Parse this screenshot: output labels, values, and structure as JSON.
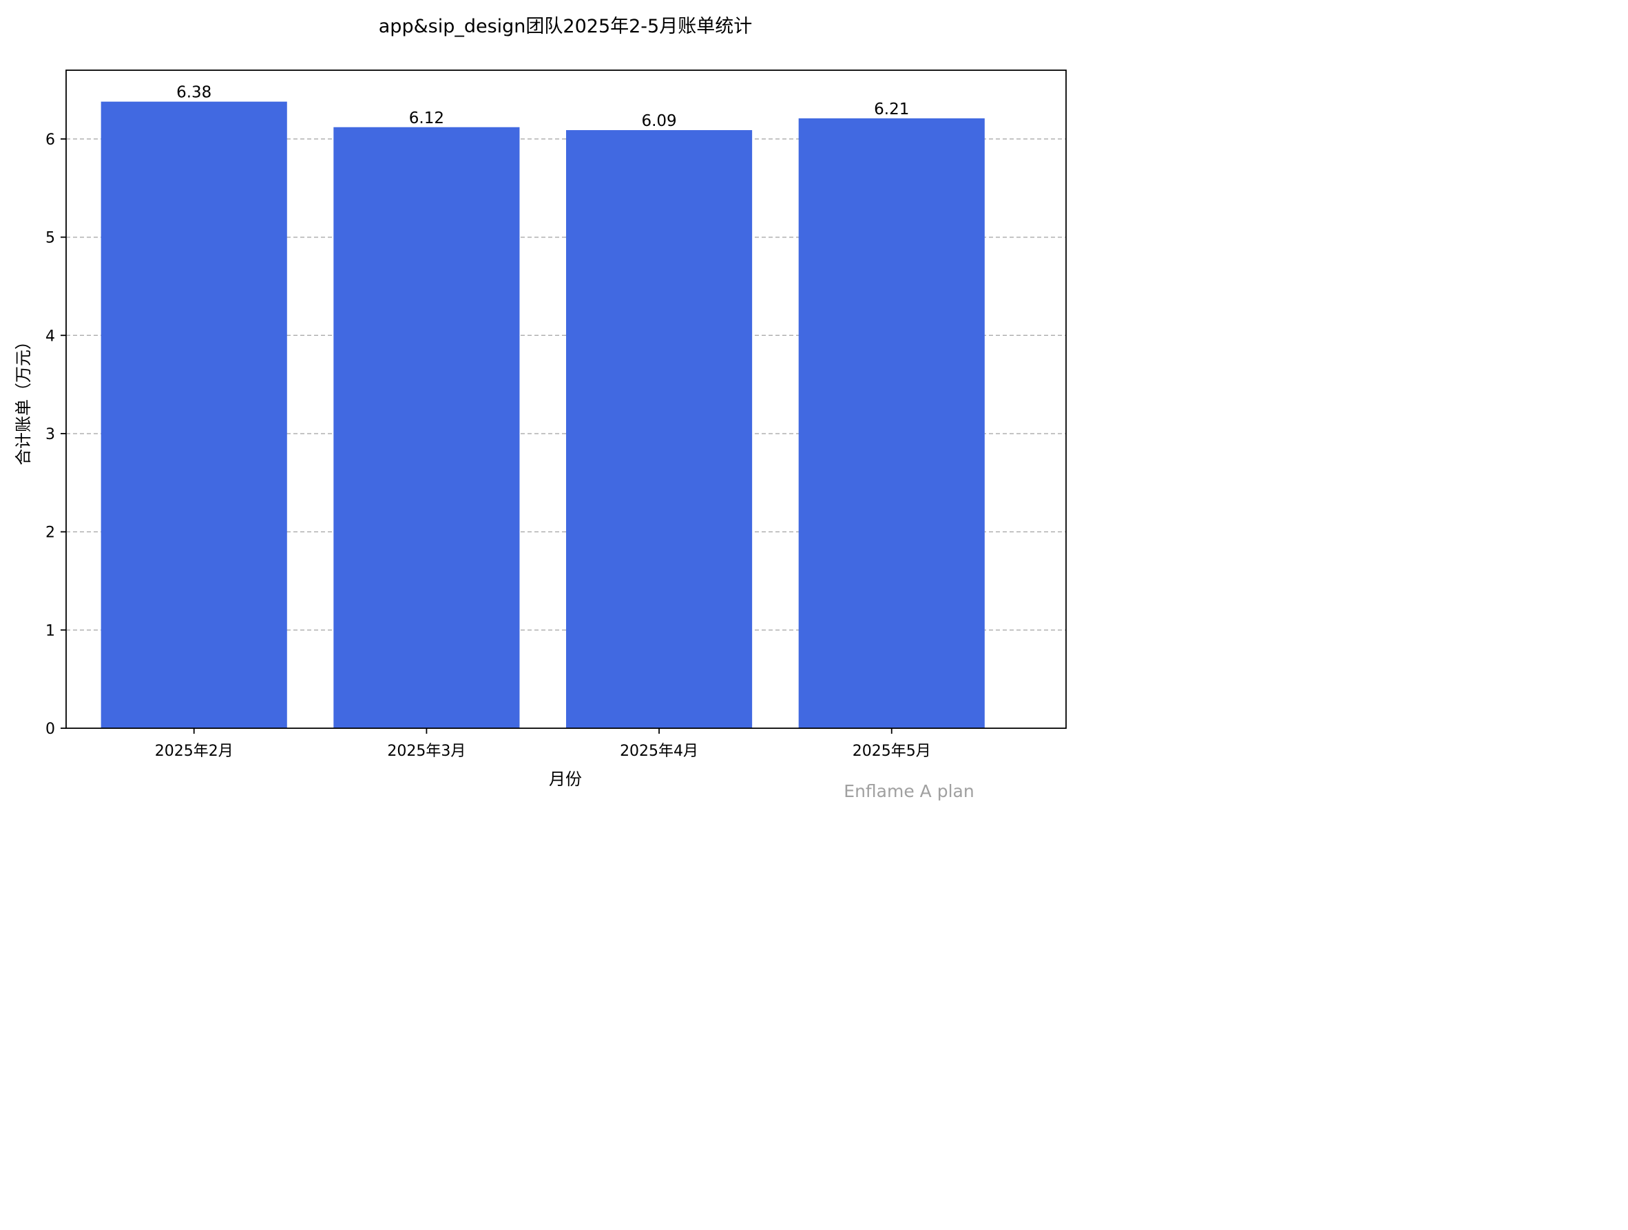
{
  "chart_data": {
    "type": "bar",
    "title": "app&sip_design团队2025年2-5月账单统计",
    "xlabel": "月份",
    "ylabel": "合计账单（万元）",
    "categories": [
      "2025年2月",
      "2025年3月",
      "2025年4月",
      "2025年5月"
    ],
    "values": [
      6.38,
      6.12,
      6.09,
      6.21
    ],
    "data_labels": [
      "6.38",
      "6.12",
      "6.09",
      "6.21"
    ],
    "ylim": [
      0,
      6.7
    ],
    "yticks": [
      0,
      1,
      2,
      3,
      4,
      5,
      6
    ],
    "grid": "y-dashed",
    "bar_color": "#4169E1",
    "grid_color": "#b0b0b0",
    "watermark": "Enflame A plan"
  }
}
